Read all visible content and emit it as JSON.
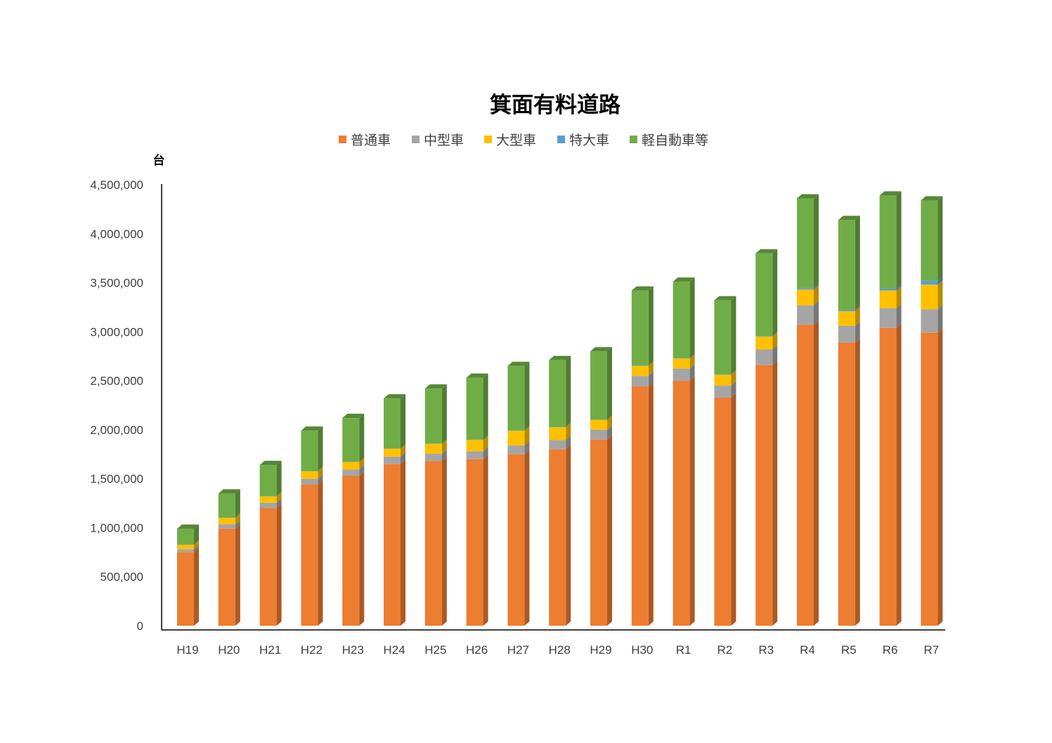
{
  "chart_data": {
    "type": "bar",
    "stacked": true,
    "style": "3d-column",
    "title": "箕面有料道路",
    "ylabel": "台",
    "xlabel": "",
    "ylim": [
      0,
      4500000
    ],
    "yticks": [
      0,
      500000,
      1000000,
      1500000,
      2000000,
      2500000,
      3000000,
      3500000,
      4000000,
      4500000
    ],
    "ytick_labels": [
      "0",
      "500,000",
      "1,000,000",
      "1,500,000",
      "2,000,000",
      "2,500,000",
      "3,000,000",
      "3,500,000",
      "4,000,000",
      "4,500,000"
    ],
    "grid": false,
    "legend_position": "top",
    "categories": [
      "H19",
      "H20",
      "H21",
      "H22",
      "H23",
      "H24",
      "H25",
      "H26",
      "H27",
      "H28",
      "H29",
      "H30",
      "R1",
      "R2",
      "R3",
      "R4",
      "R5",
      "R6",
      "R7"
    ],
    "series": [
      {
        "name": "普通車",
        "color": "#ED7D31",
        "values": [
          750000,
          990000,
          1200000,
          1440000,
          1530000,
          1650000,
          1680000,
          1700000,
          1750000,
          1800000,
          1900000,
          2440000,
          2500000,
          2330000,
          2660000,
          3070000,
          2890000,
          3040000,
          2990000
        ]
      },
      {
        "name": "中型車",
        "color": "#A5A5A5",
        "values": [
          30000,
          45000,
          55000,
          60000,
          65000,
          75000,
          75000,
          80000,
          90000,
          95000,
          100000,
          110000,
          125000,
          120000,
          160000,
          200000,
          170000,
          200000,
          240000
        ]
      },
      {
        "name": "大型車",
        "color": "#FFC000",
        "values": [
          45000,
          65000,
          65000,
          75000,
          75000,
          80000,
          100000,
          115000,
          150000,
          130000,
          100000,
          100000,
          100000,
          110000,
          130000,
          160000,
          150000,
          180000,
          250000
        ]
      },
      {
        "name": "特大車",
        "color": "#5B9BD5",
        "values": [
          2000,
          2000,
          2000,
          2000,
          2000,
          2000,
          2000,
          2000,
          2000,
          2000,
          2000,
          3000,
          3000,
          4000,
          5000,
          15000,
          15000,
          20000,
          40000
        ]
      },
      {
        "name": "軽自動車等",
        "color": "#70AD47",
        "values": [
          163000,
          248000,
          318000,
          413000,
          448000,
          513000,
          563000,
          633000,
          658000,
          683000,
          698000,
          767000,
          782000,
          756000,
          845000,
          915000,
          915000,
          950000,
          820000
        ]
      }
    ]
  }
}
